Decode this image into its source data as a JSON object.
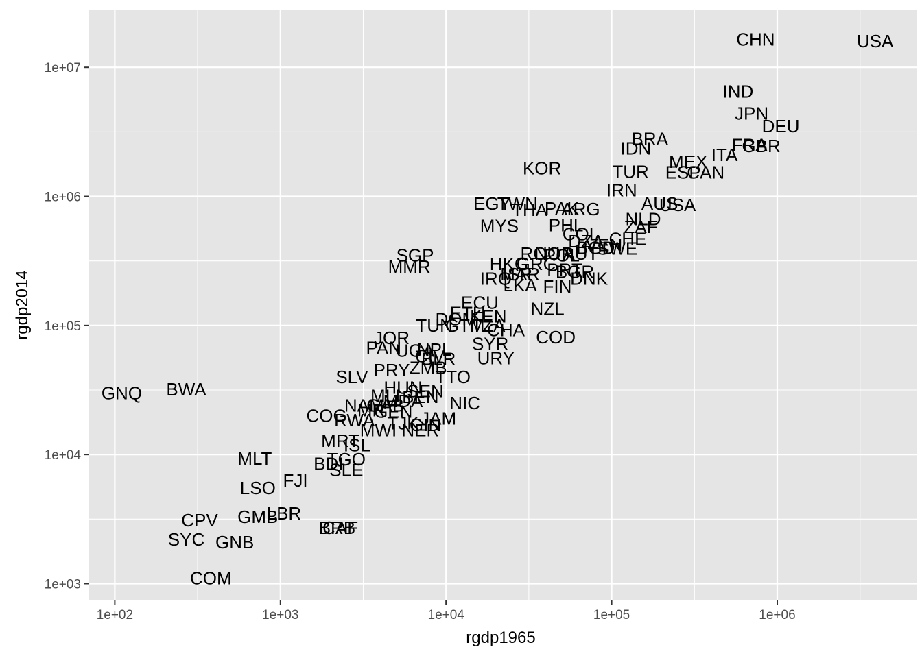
{
  "chart_data": {
    "type": "scatter",
    "mark": "text",
    "xlabel": "rgdp1965",
    "ylabel": "rgdp2014",
    "x_scale": "log10",
    "y_scale": "log10",
    "xlim": [
      70,
      7000000
    ],
    "ylim": [
      750,
      28000000
    ],
    "x_ticks": [
      {
        "value": 100,
        "label": "1e+02"
      },
      {
        "value": 1000,
        "label": "1e+03"
      },
      {
        "value": 10000,
        "label": "1e+04"
      },
      {
        "value": 100000,
        "label": "1e+05"
      },
      {
        "value": 1000000,
        "label": "1e+06"
      }
    ],
    "y_ticks": [
      {
        "value": 1000,
        "label": "1e+03"
      },
      {
        "value": 10000,
        "label": "1e+04"
      },
      {
        "value": 100000,
        "label": "1e+05"
      },
      {
        "value": 1000000,
        "label": "1e+06"
      },
      {
        "value": 10000000,
        "label": "1e+07"
      }
    ],
    "grid": true,
    "points": [
      {
        "label": "USA",
        "x": 3900000,
        "y": 16000000
      },
      {
        "label": "CHN",
        "x": 740000,
        "y": 16500000
      },
      {
        "label": "IND",
        "x": 580000,
        "y": 6500000
      },
      {
        "label": "JPN",
        "x": 700000,
        "y": 4400000
      },
      {
        "label": "DEU",
        "x": 1050000,
        "y": 3500000
      },
      {
        "label": "FRA",
        "x": 680000,
        "y": 2500000
      },
      {
        "label": "GBR",
        "x": 800000,
        "y": 2450000
      },
      {
        "label": "BRA",
        "x": 170000,
        "y": 2800000
      },
      {
        "label": "IDN",
        "x": 140000,
        "y": 2350000
      },
      {
        "label": "ITA",
        "x": 480000,
        "y": 2100000
      },
      {
        "label": "MEX",
        "x": 290000,
        "y": 1850000
      },
      {
        "label": "TUR",
        "x": 130000,
        "y": 1550000
      },
      {
        "label": "ESP",
        "x": 270000,
        "y": 1530000
      },
      {
        "label": "CAN",
        "x": 370000,
        "y": 1530000
      },
      {
        "label": "KOR",
        "x": 38000,
        "y": 1650000
      },
      {
        "label": "IRN",
        "x": 115000,
        "y": 1120000
      },
      {
        "label": "AUS",
        "x": 195000,
        "y": 880000
      },
      {
        "label": "USA",
        "x": 250000,
        "y": 860000
      },
      {
        "label": "NLD",
        "x": 155000,
        "y": 670000
      },
      {
        "label": "EGY",
        "x": 19000,
        "y": 880000
      },
      {
        "label": "TWN",
        "x": 27000,
        "y": 880000
      },
      {
        "label": "THA",
        "x": 32000,
        "y": 790000
      },
      {
        "label": "PAK",
        "x": 50000,
        "y": 810000
      },
      {
        "label": "ARG",
        "x": 65000,
        "y": 800000
      },
      {
        "label": "MYS",
        "x": 21000,
        "y": 590000
      },
      {
        "label": "PHL",
        "x": 53000,
        "y": 600000
      },
      {
        "label": "ZAF",
        "x": 150000,
        "y": 580000
      },
      {
        "label": "COL",
        "x": 65000,
        "y": 510000
      },
      {
        "label": "CHE",
        "x": 125000,
        "y": 470000
      },
      {
        "label": "DZA",
        "x": 70000,
        "y": 450000
      },
      {
        "label": "VEN",
        "x": 90000,
        "y": 420000
      },
      {
        "label": "BGD",
        "x": 80000,
        "y": 400000
      },
      {
        "label": "SWE",
        "x": 108000,
        "y": 395000
      },
      {
        "label": "SGP",
        "x": 6500,
        "y": 350000
      },
      {
        "label": "MMR",
        "x": 6000,
        "y": 285000
      },
      {
        "label": "ROU",
        "x": 37000,
        "y": 360000
      },
      {
        "label": "NOR",
        "x": 45000,
        "y": 360000
      },
      {
        "label": "AUT",
        "x": 65000,
        "y": 360000
      },
      {
        "label": "POL",
        "x": 50000,
        "y": 350000
      },
      {
        "label": "HKG",
        "x": 24000,
        "y": 300000
      },
      {
        "label": "GRC",
        "x": 35000,
        "y": 300000
      },
      {
        "label": "PRT",
        "x": 52000,
        "y": 270000
      },
      {
        "label": "IRQ",
        "x": 20000,
        "y": 230000
      },
      {
        "label": "MAR",
        "x": 28000,
        "y": 250000
      },
      {
        "label": "ISR",
        "x": 27000,
        "y": 250000
      },
      {
        "label": "BGR",
        "x": 60000,
        "y": 260000
      },
      {
        "label": "DNK",
        "x": 73000,
        "y": 230000
      },
      {
        "label": "LKA",
        "x": 28000,
        "y": 205000
      },
      {
        "label": "FIN",
        "x": 47000,
        "y": 200000
      },
      {
        "label": "NZL",
        "x": 41000,
        "y": 135000
      },
      {
        "label": "ECU",
        "x": 16000,
        "y": 150000
      },
      {
        "label": "ETH",
        "x": 13500,
        "y": 125000
      },
      {
        "label": "DOM",
        "x": 11500,
        "y": 112000
      },
      {
        "label": "KEN",
        "x": 18000,
        "y": 118000
      },
      {
        "label": "TUN",
        "x": 8500,
        "y": 100000
      },
      {
        "label": "GTM",
        "x": 13000,
        "y": 100000
      },
      {
        "label": "CHA",
        "x": 23000,
        "y": 92000
      },
      {
        "label": "TZA",
        "x": 18000,
        "y": 100000
      },
      {
        "label": "COD",
        "x": 46000,
        "y": 81000
      },
      {
        "label": "SYR",
        "x": 18500,
        "y": 72000
      },
      {
        "label": "URY",
        "x": 20000,
        "y": 56000
      },
      {
        "label": "JOR",
        "x": 4700,
        "y": 80000
      },
      {
        "label": "PAN",
        "x": 4200,
        "y": 67000
      },
      {
        "label": "UGA",
        "x": 6500,
        "y": 64000
      },
      {
        "label": "NPL",
        "x": 8500,
        "y": 65000
      },
      {
        "label": "CIV",
        "x": 8000,
        "y": 58000
      },
      {
        "label": "BLR",
        "x": 9000,
        "y": 55000
      },
      {
        "label": "PRY",
        "x": 4700,
        "y": 45000
      },
      {
        "label": "ZMB",
        "x": 7800,
        "y": 47000
      },
      {
        "label": "SLV",
        "x": 2700,
        "y": 40000
      },
      {
        "label": "TTO",
        "x": 11000,
        "y": 40000
      },
      {
        "label": "HUN",
        "x": 5500,
        "y": 33000
      },
      {
        "label": "SEN",
        "x": 7500,
        "y": 31000
      },
      {
        "label": "MLI",
        "x": 4300,
        "y": 28500
      },
      {
        "label": "BEN",
        "x": 7000,
        "y": 28000
      },
      {
        "label": "MDA",
        "x": 5500,
        "y": 26000
      },
      {
        "label": "NIC",
        "x": 13000,
        "y": 25000
      },
      {
        "label": "NAM",
        "x": 3200,
        "y": 24000
      },
      {
        "label": "GAB",
        "x": 4300,
        "y": 24000
      },
      {
        "label": "MRT",
        "x": 3800,
        "y": 22000
      },
      {
        "label": "GEN",
        "x": 4800,
        "y": 21500
      },
      {
        "label": "COG",
        "x": 1900,
        "y": 20000
      },
      {
        "label": "RWA",
        "x": 2800,
        "y": 18500
      },
      {
        "label": "TJK",
        "x": 5500,
        "y": 17500
      },
      {
        "label": "GIN",
        "x": 7500,
        "y": 17000
      },
      {
        "label": "JAM",
        "x": 9000,
        "y": 19000
      },
      {
        "label": "MWI",
        "x": 3900,
        "y": 15500
      },
      {
        "label": "NER",
        "x": 7000,
        "y": 15500
      },
      {
        "label": "MRT",
        "x": 2300,
        "y": 12800
      },
      {
        "label": "ISL",
        "x": 2900,
        "y": 11800
      },
      {
        "label": "MLT",
        "x": 700,
        "y": 9300
      },
      {
        "label": "TGO",
        "x": 2500,
        "y": 9200
      },
      {
        "label": "BDI",
        "x": 1950,
        "y": 8500
      },
      {
        "label": "SLE",
        "x": 2500,
        "y": 7600
      },
      {
        "label": "FJI",
        "x": 1230,
        "y": 6300
      },
      {
        "label": "LSO",
        "x": 730,
        "y": 5500
      },
      {
        "label": "GNQ",
        "x": 110,
        "y": 30000
      },
      {
        "label": "BWA",
        "x": 270,
        "y": 32000
      },
      {
        "label": "CPV",
        "x": 325,
        "y": 3100
      },
      {
        "label": "GMB",
        "x": 730,
        "y": 3300
      },
      {
        "label": "LBR",
        "x": 1050,
        "y": 3500
      },
      {
        "label": "SYC",
        "x": 270,
        "y": 2200
      },
      {
        "label": "GNB",
        "x": 530,
        "y": 2100
      },
      {
        "label": "BRB",
        "x": 2200,
        "y": 2700
      },
      {
        "label": "CAF",
        "x": 2300,
        "y": 2700
      },
      {
        "label": "COM",
        "x": 380,
        "y": 1100
      }
    ]
  }
}
